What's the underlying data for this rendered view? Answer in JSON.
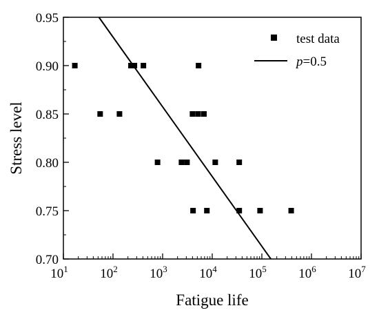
{
  "chart_data": {
    "type": "scatter",
    "title": "",
    "xlabel": "Fatigue life",
    "ylabel": "Stress level",
    "x_scale": "log",
    "xlim": [
      10,
      10000000
    ],
    "ylim": [
      0.7,
      0.95
    ],
    "x_ticks": [
      {
        "value": 10,
        "exp": "1"
      },
      {
        "value": 100,
        "exp": "2"
      },
      {
        "value": 1000,
        "exp": "3"
      },
      {
        "value": 10000,
        "exp": "4"
      },
      {
        "value": 100000,
        "exp": "5"
      },
      {
        "value": 1000000,
        "exp": "6"
      },
      {
        "value": 10000000,
        "exp": "7"
      }
    ],
    "x_tick_base": "10",
    "y_ticks": [
      "0.70",
      "0.75",
      "0.80",
      "0.85",
      "0.90",
      "0.95"
    ],
    "grid": false,
    "legend_position": "top-right",
    "series": [
      {
        "name": "test data",
        "kind": "scatter",
        "marker": "square",
        "color": "#000000",
        "points": [
          {
            "x": 17,
            "y": 0.9
          },
          {
            "x": 230,
            "y": 0.9
          },
          {
            "x": 270,
            "y": 0.9
          },
          {
            "x": 410,
            "y": 0.9
          },
          {
            "x": 5300,
            "y": 0.9
          },
          {
            "x": 55,
            "y": 0.85
          },
          {
            "x": 135,
            "y": 0.85
          },
          {
            "x": 4000,
            "y": 0.85
          },
          {
            "x": 5200,
            "y": 0.85
          },
          {
            "x": 6800,
            "y": 0.85
          },
          {
            "x": 790,
            "y": 0.8
          },
          {
            "x": 2400,
            "y": 0.8
          },
          {
            "x": 3100,
            "y": 0.8
          },
          {
            "x": 11500,
            "y": 0.8
          },
          {
            "x": 35000,
            "y": 0.8
          },
          {
            "x": 4100,
            "y": 0.75
          },
          {
            "x": 7800,
            "y": 0.75
          },
          {
            "x": 35000,
            "y": 0.75
          },
          {
            "x": 92000,
            "y": 0.75
          },
          {
            "x": 390000,
            "y": 0.75
          }
        ]
      },
      {
        "name_italic": "p",
        "name_rest": "=0.5",
        "kind": "line",
        "color": "#000000",
        "points": [
          {
            "x": 52,
            "y": 0.95
          },
          {
            "x": 152000,
            "y": 0.7
          }
        ]
      }
    ]
  }
}
